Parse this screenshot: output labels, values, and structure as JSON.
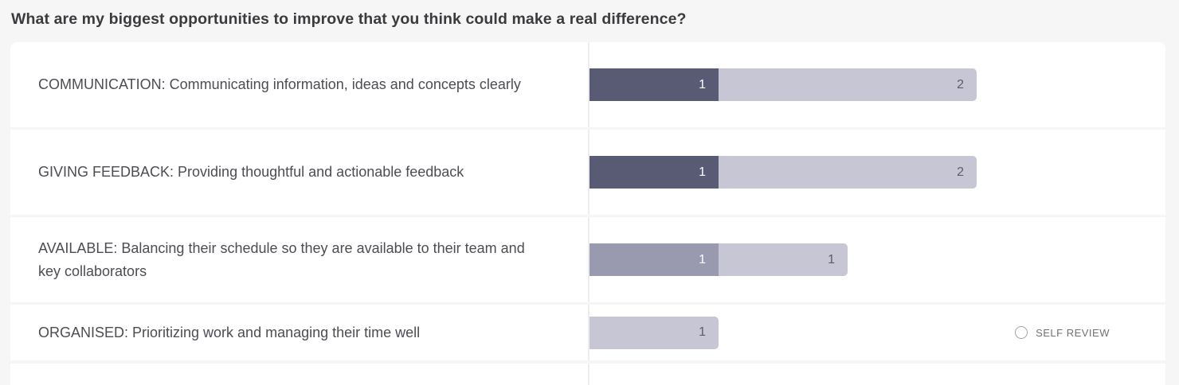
{
  "title": "What are my biggest opportunities to improve that you think could make a real difference?",
  "legend": {
    "self_review_label": "SELF REVIEW"
  },
  "colors": {
    "dark": "#595b75",
    "medium": "#999ab0",
    "light": "#c6c6d4",
    "segment_text_on_light": "#5b5c6e",
    "page_background": "#f6f6f7",
    "divider": "#ededef"
  },
  "chart_data": {
    "type": "bar",
    "orientation": "horizontal",
    "stacked": true,
    "grid": false,
    "legend_position": "bottom-right",
    "title": "What are my biggest opportunities to improve that you think could make a real difference?",
    "xlabel": "",
    "ylabel": "",
    "value_unit": "responses",
    "max_row_total": 3,
    "rows": [
      {
        "category": "COMMUNICATION: Communicating information, ideas and concepts clearly",
        "segments": [
          {
            "value": 1,
            "shade": "dark"
          },
          {
            "value": 2,
            "shade": "light"
          }
        ],
        "total": 3,
        "self_review": false
      },
      {
        "category": "GIVING FEEDBACK: Providing thoughtful and actionable feedback",
        "segments": [
          {
            "value": 1,
            "shade": "dark"
          },
          {
            "value": 2,
            "shade": "light"
          }
        ],
        "total": 3,
        "self_review": false
      },
      {
        "category": "AVAILABLE: Balancing their schedule so they are available to their team and key collaborators",
        "segments": [
          {
            "value": 1,
            "shade": "medium"
          },
          {
            "value": 1,
            "shade": "light"
          }
        ],
        "total": 2,
        "self_review": false
      },
      {
        "category": "ORGANISED: Prioritizing work and managing their time well",
        "segments": [
          {
            "value": 1,
            "shade": "light"
          }
        ],
        "total": 1,
        "self_review": true
      }
    ]
  }
}
